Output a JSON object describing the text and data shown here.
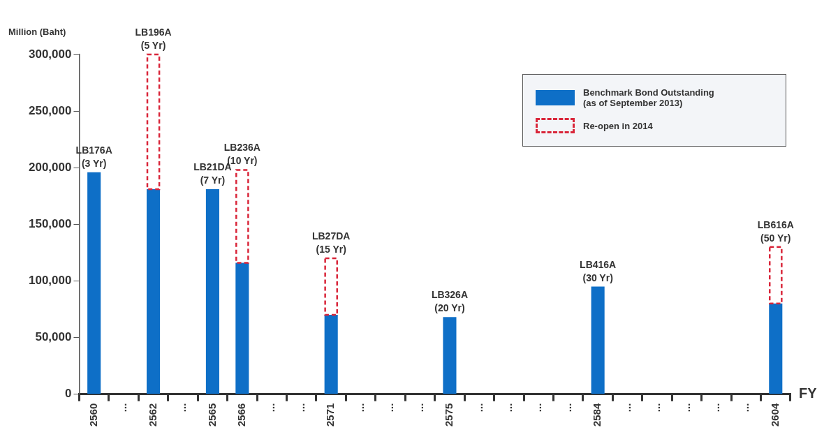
{
  "chart_data": {
    "type": "bar",
    "stacked": true,
    "ylabel": "Million (Baht)",
    "xlabel": "FY",
    "categories": [
      "2560",
      "...",
      "2562",
      "...",
      "2565",
      "2566",
      "...",
      "...",
      "2571",
      "...",
      "...",
      "...",
      "2575",
      "...",
      "...",
      "...",
      "...",
      "2584",
      "...",
      "...",
      "...",
      "...",
      "...",
      "2604"
    ],
    "series": [
      {
        "name": "Benchmark Bond Outstanding (as of September 2013)",
        "color": "#0e6fc7",
        "values": [
          196000,
          null,
          181000,
          null,
          181000,
          116000,
          null,
          null,
          70000,
          null,
          null,
          null,
          68000,
          null,
          null,
          null,
          null,
          95000,
          null,
          null,
          null,
          null,
          null,
          80000
        ]
      },
      {
        "name": "Re-open  in 2014",
        "color": "#d9263a",
        "line_style": "dashed",
        "values": [
          null,
          null,
          119000,
          null,
          null,
          82000,
          null,
          null,
          50000,
          null,
          null,
          null,
          null,
          null,
          null,
          null,
          null,
          null,
          null,
          null,
          null,
          null,
          null,
          50000
        ]
      }
    ],
    "ylim": [
      0,
      300000
    ],
    "yticks": [
      0,
      {
        "value": 50000,
        "label": "50,000"
      },
      {
        "value": 100000,
        "label": "100,000"
      },
      {
        "value": 150000,
        "label": "150,000"
      },
      {
        "value": 200000,
        "label": "200,000"
      },
      {
        "value": 250000,
        "label": "250,000"
      },
      {
        "value": 300000,
        "label": "300,000"
      }
    ],
    "grid": false,
    "legend": "top right",
    "annotations": [
      {
        "text": "LB176A\n(3 Yr)",
        "x": "2560",
        "y": 196000
      },
      {
        "text": "LB196A\n(5 Yr)",
        "x": "2562",
        "y": 300000
      },
      {
        "text": "LB21DA\n(7 Yr)",
        "x": "2565",
        "y": 181000
      },
      {
        "text": "LB236A\n(10 Yr)",
        "x": "2566",
        "y": 198000
      },
      {
        "text": "LB27DA\n(15 Yr)",
        "x": "2571",
        "y": 120000
      },
      {
        "text": "LB326A\n(20 Yr)",
        "x": "2575",
        "y": 68000
      },
      {
        "text": "LB416A\n(30 Yr)",
        "x": "2584",
        "y": 95000
      },
      {
        "text": "LB616A\n(50 Yr)",
        "x": "2604",
        "y": 130000
      }
    ]
  }
}
